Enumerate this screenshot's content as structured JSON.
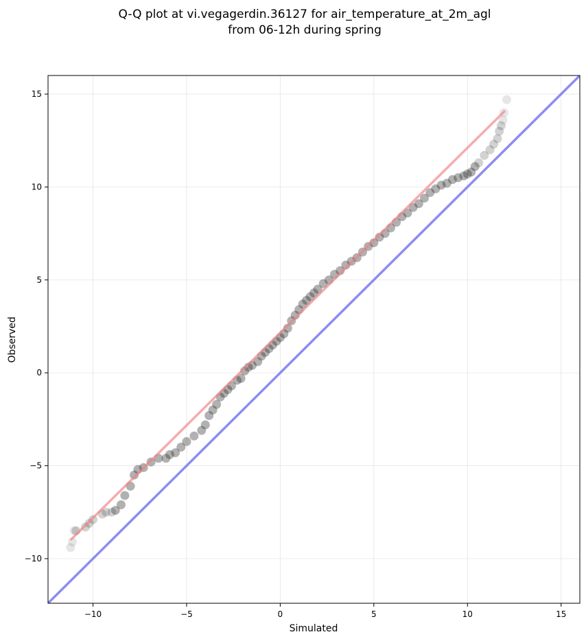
{
  "chart_data": {
    "type": "scatter",
    "title": "Q-Q plot at vi.vegagerdin.36127 for air_temperature_at_2m_agl",
    "subtitle": "from 06-12h during spring",
    "xlabel": "Simulated",
    "ylabel": "Observed",
    "xlim": [
      -12.4,
      16.0
    ],
    "ylim": [
      -12.4,
      16.0
    ],
    "xticks": [
      -10,
      -5,
      0,
      5,
      10,
      15
    ],
    "yticks": [
      -10,
      -5,
      0,
      5,
      10,
      15
    ],
    "xtick_labels": [
      "−10",
      "−5",
      "0",
      "5",
      "10",
      "15"
    ],
    "ytick_labels": [
      "−10",
      "−5",
      "0",
      "5",
      "10",
      "15"
    ],
    "grid": true,
    "colors": {
      "points": "#333333",
      "fit_line": "#f08080",
      "identity_line": "#8080f0",
      "axes": "#000000",
      "grid": "#d9d9d9"
    },
    "series": [
      {
        "kind": "points",
        "points": [
          [
            -11.2,
            -9.4
          ],
          [
            -11.1,
            -9.1
          ],
          [
            -11.0,
            -8.5
          ],
          [
            -10.9,
            -8.5
          ],
          [
            -10.4,
            -8.3
          ],
          [
            -10.2,
            -8.1
          ],
          [
            -10.0,
            -7.9
          ],
          [
            -9.5,
            -7.6
          ],
          [
            -9.3,
            -7.5
          ],
          [
            -9.0,
            -7.5
          ],
          [
            -8.8,
            -7.4
          ],
          [
            -8.5,
            -7.1
          ],
          [
            -8.3,
            -6.6
          ],
          [
            -8.0,
            -6.1
          ],
          [
            -7.8,
            -5.5
          ],
          [
            -7.6,
            -5.2
          ],
          [
            -7.3,
            -5.1
          ],
          [
            -6.9,
            -4.8
          ],
          [
            -6.5,
            -4.6
          ],
          [
            -6.1,
            -4.6
          ],
          [
            -5.9,
            -4.4
          ],
          [
            -5.6,
            -4.3
          ],
          [
            -5.3,
            -4.0
          ],
          [
            -5.0,
            -3.7
          ],
          [
            -4.6,
            -3.4
          ],
          [
            -4.2,
            -3.1
          ],
          [
            -4.0,
            -2.8
          ],
          [
            -3.8,
            -2.3
          ],
          [
            -3.6,
            -2.0
          ],
          [
            -3.4,
            -1.7
          ],
          [
            -3.2,
            -1.3
          ],
          [
            -3.0,
            -1.1
          ],
          [
            -2.8,
            -0.9
          ],
          [
            -2.6,
            -0.7
          ],
          [
            -2.3,
            -0.4
          ],
          [
            -2.1,
            -0.3
          ],
          [
            -1.9,
            0.1
          ],
          [
            -1.7,
            0.3
          ],
          [
            -1.5,
            0.4
          ],
          [
            -1.2,
            0.6
          ],
          [
            -1.0,
            0.9
          ],
          [
            -0.8,
            1.1
          ],
          [
            -0.6,
            1.3
          ],
          [
            -0.4,
            1.5
          ],
          [
            -0.2,
            1.7
          ],
          [
            0.0,
            1.9
          ],
          [
            0.2,
            2.1
          ],
          [
            0.4,
            2.4
          ],
          [
            0.6,
            2.8
          ],
          [
            0.8,
            3.1
          ],
          [
            1.0,
            3.4
          ],
          [
            1.2,
            3.7
          ],
          [
            1.4,
            3.9
          ],
          [
            1.6,
            4.1
          ],
          [
            1.8,
            4.3
          ],
          [
            2.0,
            4.5
          ],
          [
            2.3,
            4.8
          ],
          [
            2.6,
            5.0
          ],
          [
            2.9,
            5.3
          ],
          [
            3.2,
            5.5
          ],
          [
            3.5,
            5.8
          ],
          [
            3.8,
            6.0
          ],
          [
            4.1,
            6.2
          ],
          [
            4.4,
            6.5
          ],
          [
            4.7,
            6.8
          ],
          [
            5.0,
            7.0
          ],
          [
            5.3,
            7.3
          ],
          [
            5.6,
            7.5
          ],
          [
            5.9,
            7.8
          ],
          [
            6.2,
            8.1
          ],
          [
            6.5,
            8.4
          ],
          [
            6.8,
            8.6
          ],
          [
            7.1,
            8.9
          ],
          [
            7.4,
            9.1
          ],
          [
            7.7,
            9.4
          ],
          [
            8.0,
            9.7
          ],
          [
            8.3,
            9.9
          ],
          [
            8.6,
            10.1
          ],
          [
            8.9,
            10.2
          ],
          [
            9.2,
            10.4
          ],
          [
            9.5,
            10.5
          ],
          [
            9.8,
            10.6
          ],
          [
            10.0,
            10.7
          ],
          [
            10.2,
            10.8
          ],
          [
            10.4,
            11.1
          ],
          [
            10.6,
            11.3
          ],
          [
            10.9,
            11.7
          ],
          [
            11.2,
            12.0
          ],
          [
            11.4,
            12.3
          ],
          [
            11.6,
            12.6
          ],
          [
            11.7,
            13.0
          ],
          [
            11.8,
            13.3
          ],
          [
            11.9,
            13.6
          ],
          [
            11.95,
            14.0
          ],
          [
            12.1,
            14.7
          ]
        ]
      },
      {
        "kind": "fit_line",
        "points": [
          [
            -11.2,
            -9.0
          ],
          [
            12.0,
            14.1
          ]
        ]
      },
      {
        "kind": "identity_line",
        "points": [
          [
            -12.4,
            -12.4
          ],
          [
            16.0,
            16.0
          ]
        ]
      }
    ]
  }
}
